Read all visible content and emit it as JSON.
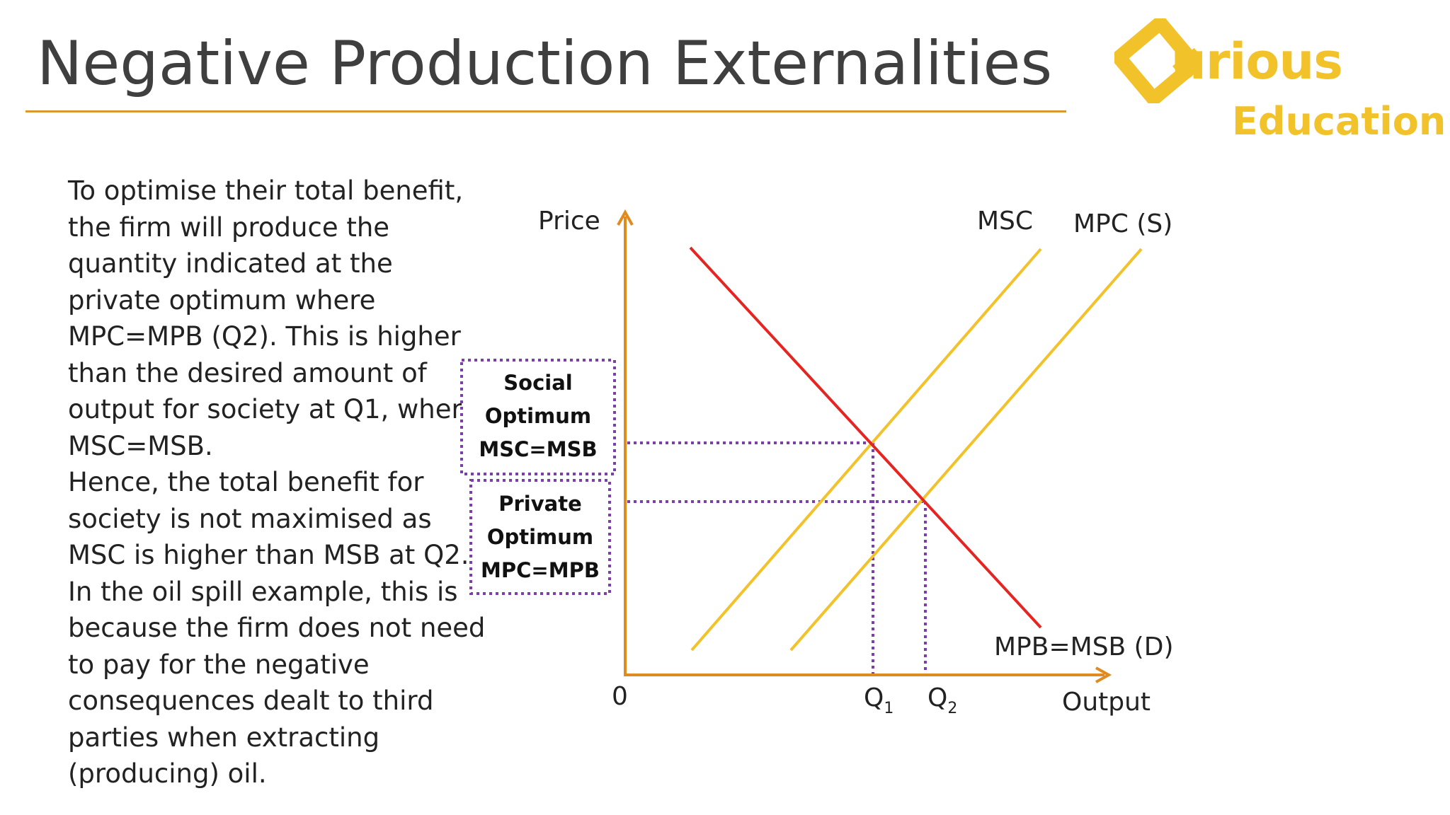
{
  "slide": {
    "title": "Negative Production Externalities"
  },
  "logo": {
    "brand": "Qurious",
    "brand_visible": "urious",
    "sub": "Education",
    "color": "#f2c22b"
  },
  "body_text": {
    "paragraph_1": "To optimise their total benefit, the firm will produce the quantity indicated at the private optimum where MPC=MPB (Q2). This is higher than the desired amount of output for society at Q1, where MSC=MSB.",
    "paragraph_2": "Hence, the total benefit for society is not maximised as MSC is higher than MSB at Q2. In the oil spill example, this is because the firm does not need to pay for the negative consequences dealt to third parties when extracting (producing) oil."
  },
  "diagram": {
    "axis_color": "#e08b20",
    "demand_color": "#e52521",
    "supply_color": "#f2c22b",
    "guide_color": "#7a3fa8",
    "y_axis_label": "Price",
    "x_axis_label": "Output",
    "origin_label": "0",
    "curves": {
      "msc": "MSC",
      "mpc": "MPC (S)",
      "demand": "MPB=MSB (D)"
    },
    "q1": {
      "letter": "Q",
      "sub": "1"
    },
    "q2": {
      "letter": "Q",
      "sub": "2"
    },
    "social_box": [
      "Social",
      "Optimum",
      "MSC=MSB"
    ],
    "private_box": [
      "Private",
      "Optimum",
      "MPC=MPB"
    ]
  }
}
